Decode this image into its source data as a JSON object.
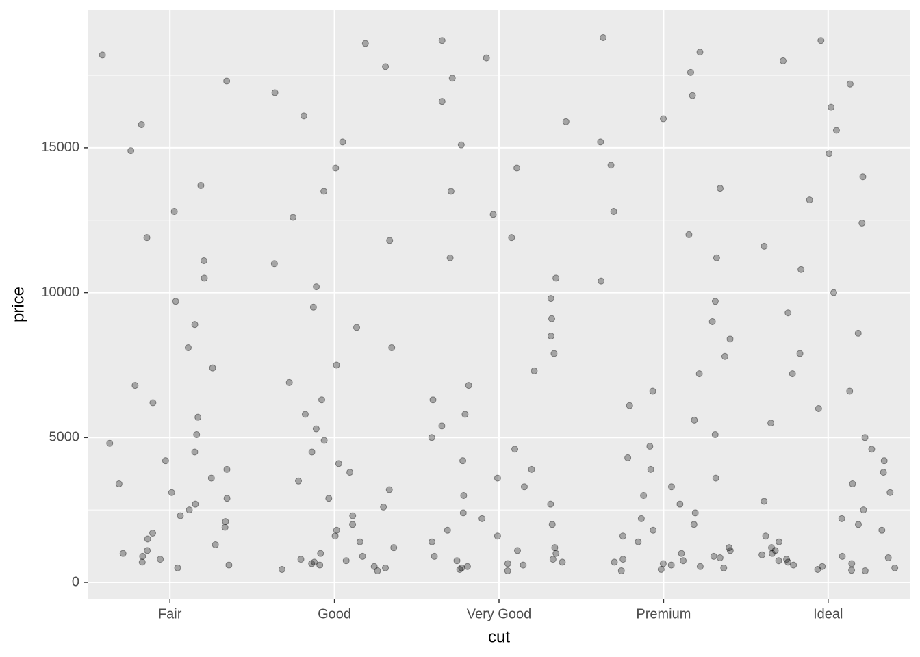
{
  "chart_data": {
    "type": "strip",
    "x_label": "cut",
    "y_label": "price",
    "categories": [
      "Fair",
      "Good",
      "Very Good",
      "Premium",
      "Ideal"
    ],
    "values": [
      [
        18200,
        17300,
        15800,
        14900,
        13700,
        12800,
        11900,
        11100,
        10500,
        9700,
        8900,
        8100,
        7400,
        6800,
        6200,
        5700,
        5100,
        4800,
        4500,
        4200,
        3900,
        3600,
        3400,
        3100,
        2900,
        2700,
        2500,
        2300,
        2100,
        1900,
        1700,
        1500,
        1300,
        1100,
        1000,
        900,
        800,
        700,
        600,
        500
      ],
      [
        18600,
        17800,
        16900,
        16100,
        15200,
        14300,
        13500,
        12600,
        11800,
        11000,
        10200,
        9500,
        8800,
        8100,
        7500,
        6900,
        6300,
        5800,
        5300,
        4900,
        4500,
        4100,
        3800,
        3500,
        3200,
        2900,
        2600,
        2300,
        2000,
        1800,
        1600,
        1400,
        1200,
        1000,
        900,
        800,
        750,
        700,
        650,
        600,
        550,
        500,
        450,
        400
      ],
      [
        18700,
        18100,
        17400,
        16600,
        15900,
        15100,
        14300,
        13500,
        12700,
        11900,
        11200,
        10500,
        9800,
        9100,
        8500,
        7900,
        7300,
        6800,
        6300,
        5800,
        5400,
        5000,
        4600,
        4200,
        3900,
        3600,
        3300,
        3000,
        2700,
        2400,
        2200,
        2000,
        1800,
        1600,
        1400,
        1200,
        1100,
        1000,
        900,
        800,
        750,
        700,
        650,
        600,
        550,
        500,
        450,
        400
      ],
      [
        18800,
        18300,
        17600,
        16800,
        16000,
        15200,
        14400,
        13600,
        12800,
        12000,
        11200,
        10400,
        9700,
        9000,
        8400,
        7800,
        7200,
        6600,
        6100,
        5600,
        5100,
        4700,
        4300,
        3900,
        3600,
        3300,
        3000,
        2700,
        2400,
        2200,
        2000,
        1800,
        1600,
        1400,
        1200,
        1100,
        1000,
        900,
        850,
        800,
        750,
        700,
        650,
        600,
        550,
        500,
        450,
        400
      ],
      [
        18700,
        18000,
        17200,
        16400,
        15600,
        14800,
        14000,
        13200,
        12400,
        11600,
        10800,
        10000,
        9300,
        8600,
        7900,
        7200,
        6600,
        6000,
        5500,
        5000,
        4600,
        4200,
        3800,
        3400,
        3100,
        2800,
        2500,
        2200,
        2000,
        1800,
        1600,
        1400,
        1200,
        1100,
        1000,
        950,
        900,
        850,
        800,
        750,
        700,
        650,
        600,
        550,
        500,
        450,
        420,
        400
      ]
    ],
    "color": "#000000",
    "ylim": [
      -567,
      19745
    ],
    "yticks": [
      0,
      5000,
      10000,
      15000
    ],
    "grid": true,
    "minor_grid": true
  }
}
